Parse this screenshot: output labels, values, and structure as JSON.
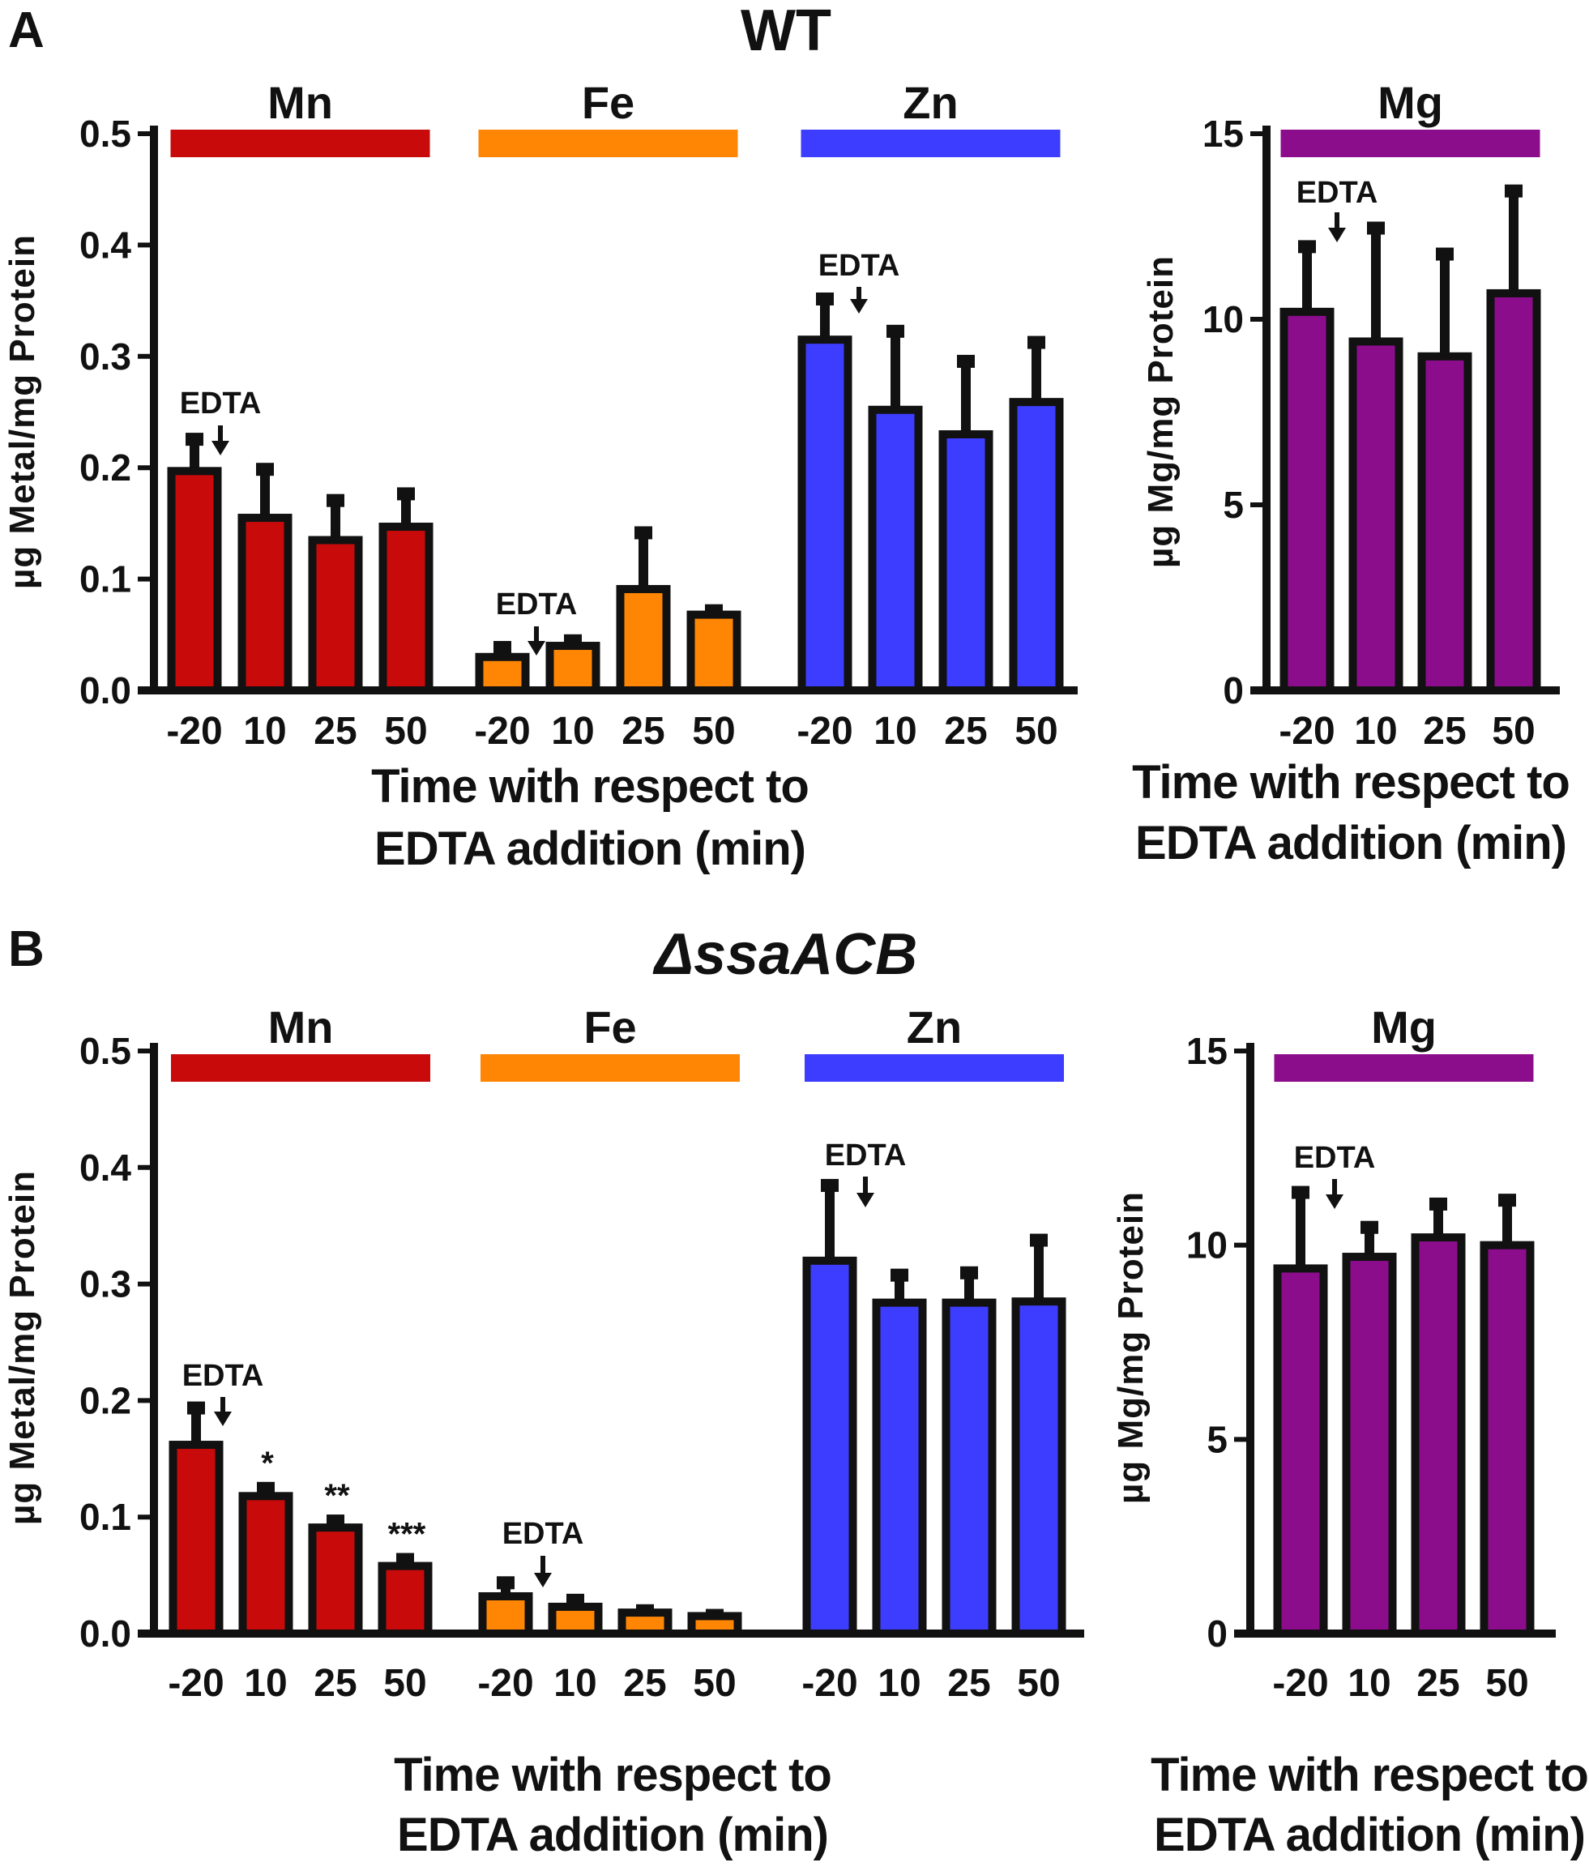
{
  "colors": {
    "Mn": "#c80a0a",
    "Fe": "#ff8605",
    "Zn": "#3d3dff",
    "Mg": "#8c0d8c",
    "ink": "#111111"
  },
  "chart_data": [
    {
      "panel": "A",
      "title": "WT",
      "type": "bar",
      "metals": [
        "Mn",
        "Fe",
        "Zn"
      ],
      "categories": [
        "-20",
        "10",
        "25",
        "50"
      ],
      "ylabel": "µg Metal/mg Protein",
      "ylim": [
        0,
        0.5
      ],
      "yticks": [
        "0.0",
        "0.1",
        "0.2",
        "0.3",
        "0.4",
        "0.5"
      ],
      "xlabel_line1": "Time with respect to",
      "xlabel_line2": "EDTA addition (min)",
      "annotation": "EDTA",
      "series": [
        {
          "name": "Mn",
          "values": [
            0.197,
            0.155,
            0.135,
            0.147
          ],
          "errors": [
            0.03,
            0.045,
            0.037,
            0.031
          ],
          "sig": [
            "",
            "",
            "",
            ""
          ]
        },
        {
          "name": "Fe",
          "values": [
            0.03,
            0.04,
            0.091,
            0.068
          ],
          "errors": [
            0.01,
            0.006,
            0.052,
            0.005
          ],
          "sig": [
            "",
            "",
            "",
            ""
          ]
        },
        {
          "name": "Zn",
          "values": [
            0.315,
            0.252,
            0.23,
            0.259
          ],
          "errors": [
            0.038,
            0.072,
            0.067,
            0.055
          ],
          "sig": [
            "",
            "",
            "",
            ""
          ]
        }
      ]
    },
    {
      "panel": "A",
      "title": "",
      "type": "bar",
      "metals": [
        "Mg"
      ],
      "categories": [
        "-20",
        "10",
        "25",
        "50"
      ],
      "ylabel": "µg Mg/mg Protein",
      "ylim": [
        0,
        15
      ],
      "yticks": [
        "0",
        "5",
        "10",
        "15"
      ],
      "xlabel_line1": "Time with respect to",
      "xlabel_line2": "EDTA addition (min)",
      "annotation": "EDTA",
      "series": [
        {
          "name": "Mg",
          "values": [
            10.2,
            9.4,
            9.0,
            10.7
          ],
          "errors": [
            1.8,
            3.1,
            2.8,
            2.8
          ],
          "sig": [
            "",
            "",
            "",
            ""
          ]
        }
      ]
    },
    {
      "panel": "B",
      "title": "ΔssaACB",
      "type": "bar",
      "metals": [
        "Mn",
        "Fe",
        "Zn"
      ],
      "categories": [
        "-20",
        "10",
        "25",
        "50"
      ],
      "ylabel": "µg Metal/mg Protein",
      "ylim": [
        0,
        0.5
      ],
      "yticks": [
        "0.0",
        "0.1",
        "0.2",
        "0.3",
        "0.4",
        "0.5"
      ],
      "xlabel_line1": "Time with respect to",
      "xlabel_line2": "EDTA addition (min)",
      "annotation": "EDTA",
      "series": [
        {
          "name": "Mn",
          "values": [
            0.162,
            0.118,
            0.091,
            0.058
          ],
          "errors": [
            0.033,
            0.008,
            0.007,
            0.007
          ],
          "sig": [
            "",
            "*",
            "**",
            "***"
          ]
        },
        {
          "name": "Fe",
          "values": [
            0.032,
            0.023,
            0.018,
            0.015
          ],
          "errors": [
            0.013,
            0.007,
            0.003,
            0.002
          ],
          "sig": [
            "",
            "",
            "",
            ""
          ]
        },
        {
          "name": "Zn",
          "values": [
            0.32,
            0.284,
            0.284,
            0.285
          ],
          "errors": [
            0.066,
            0.025,
            0.027,
            0.054
          ],
          "sig": [
            "",
            "",
            "",
            ""
          ]
        }
      ]
    },
    {
      "panel": "B",
      "title": "",
      "type": "bar",
      "metals": [
        "Mg"
      ],
      "categories": [
        "-20",
        "10",
        "25",
        "50"
      ],
      "ylabel": "µg Mg/mg Protein",
      "ylim": [
        0,
        15
      ],
      "yticks": [
        "0",
        "5",
        "10",
        "15"
      ],
      "xlabel_line1": "Time with respect to",
      "xlabel_line2": "EDTA addition (min)",
      "annotation": "EDTA",
      "series": [
        {
          "name": "Mg",
          "values": [
            9.4,
            9.7,
            10.2,
            10.0
          ],
          "errors": [
            2.0,
            0.8,
            0.9,
            1.2
          ],
          "sig": [
            "",
            "",
            "",
            ""
          ]
        }
      ]
    }
  ]
}
